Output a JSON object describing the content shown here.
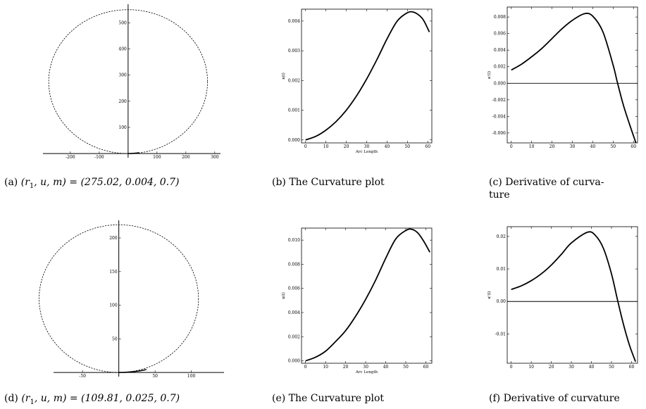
{
  "figure": {
    "captions": {
      "a": {
        "tag": "(a)",
        "lhs": "(r",
        "sub": "1",
        "rest": ", u, m) = (275.02, 0.004, 0.7)"
      },
      "b": {
        "tag": "(b)",
        "text": "The Curvature plot"
      },
      "c": {
        "tag": "(c)",
        "text": "Derivative of curva-",
        "text2": "ture"
      },
      "d": {
        "tag": "(d)",
        "lhs": "(r",
        "sub": "1",
        "rest": ", u, m) = (109.81, 0.025, 0.7)"
      },
      "e": {
        "tag": "(e)",
        "text": "The Curvature plot"
      },
      "f": {
        "tag": "(f)",
        "text": "Derivative of curvature"
      }
    }
  },
  "chart_data": [
    {
      "id": "a",
      "type": "line",
      "title": "",
      "xlabel": "",
      "ylabel": "",
      "xlim": [
        -290,
        320
      ],
      "ylim": [
        -5,
        560
      ],
      "xticks": [
        -200,
        -100,
        100,
        200,
        300
      ],
      "yticks": [
        100,
        200,
        300,
        400,
        500
      ],
      "series": [
        {
          "kind": "circle-dashed",
          "cx": 0,
          "cy": 275.02,
          "r": 275.02
        },
        {
          "kind": "spiral",
          "points": [
            [
              0,
              0
            ],
            [
              10,
              0.2
            ],
            [
              20,
              0.8
            ],
            [
              30,
              1.8
            ],
            [
              38,
              3.3
            ]
          ]
        }
      ]
    },
    {
      "id": "b",
      "type": "line",
      "title": "",
      "xlabel": "Arc Length",
      "ylabel": "κ(l)",
      "xlim": [
        -2,
        62
      ],
      "ylim": [
        -0.0001,
        0.0044
      ],
      "xticks": [
        0,
        10,
        20,
        30,
        40,
        50,
        60
      ],
      "yticks": [
        0.0,
        0.001,
        0.002,
        0.003,
        0.004
      ],
      "ytick_labels": [
        "0.000",
        "0.001",
        "0.002",
        "0.003",
        "0.004"
      ],
      "series": [
        {
          "x": [
            0,
            5,
            10,
            15,
            20,
            25,
            30,
            35,
            40,
            45,
            50,
            53,
            56,
            58,
            60.8
          ],
          "y": [
            0,
            0.00012,
            0.00033,
            0.00062,
            0.001,
            0.00148,
            0.00205,
            0.0027,
            0.0034,
            0.004,
            0.00428,
            0.0043,
            0.00418,
            0.00402,
            0.00363
          ]
        }
      ]
    },
    {
      "id": "c",
      "type": "line",
      "title": "",
      "xlabel": "",
      "ylabel": "κ'(l)",
      "xlim": [
        -2,
        62
      ],
      "ylim": [
        -0.0072,
        0.0092
      ],
      "xticks": [
        0,
        10,
        20,
        30,
        40,
        50,
        60
      ],
      "yticks": [
        -0.006,
        -0.004,
        -0.002,
        0.0,
        0.002,
        0.004,
        0.006,
        0.008
      ],
      "ytick_labels": [
        "-0.006",
        "-0.004",
        "-0.002",
        "0.000",
        "0.002",
        "0.004",
        "0.006",
        "0.008"
      ],
      "zero_line": true,
      "series": [
        {
          "x": [
            0,
            5,
            10,
            15,
            20,
            25,
            30,
            36,
            40,
            45,
            50,
            52,
            55,
            58,
            61.2
          ],
          "y": [
            0.0016,
            0.0023,
            0.0032,
            0.0042,
            0.0054,
            0.0066,
            0.0076,
            0.0084,
            0.0081,
            0.0062,
            0.0022,
            0.0002,
            -0.0026,
            -0.0049,
            -0.0072
          ]
        }
      ]
    },
    {
      "id": "d",
      "type": "line",
      "title": "",
      "xlabel": "",
      "ylabel": "",
      "xlim": [
        -88,
        145
      ],
      "ylim": [
        -2,
        222
      ],
      "xticks": [
        -50,
        50,
        100
      ],
      "yticks": [
        50,
        100,
        150,
        200
      ],
      "series": [
        {
          "kind": "circle-dashed",
          "cx": 0,
          "cy": 109.81,
          "r": 109.81
        },
        {
          "kind": "spiral",
          "points": [
            [
              0,
              0
            ],
            [
              10,
              0.3
            ],
            [
              20,
              1.2
            ],
            [
              30,
              2.6
            ],
            [
              38,
              4.4
            ]
          ]
        }
      ]
    },
    {
      "id": "e",
      "type": "line",
      "title": "",
      "xlabel": "Arc Length",
      "ylabel": "κ(l)",
      "xlim": [
        -2,
        63
      ],
      "ylim": [
        -0.0002,
        0.011
      ],
      "xticks": [
        0,
        10,
        20,
        30,
        40,
        50,
        60
      ],
      "yticks": [
        0.0,
        0.002,
        0.004,
        0.006,
        0.008,
        0.01
      ],
      "ytick_labels": [
        "0.000",
        "0.002",
        "0.004",
        "0.006",
        "0.008",
        "0.010"
      ],
      "series": [
        {
          "x": [
            0,
            5,
            10,
            15,
            20,
            25,
            30,
            35,
            40,
            45,
            50,
            53,
            56,
            59,
            62
          ],
          "y": [
            0,
            0.0003,
            0.0008,
            0.0016,
            0.0025,
            0.0037,
            0.0051,
            0.0067,
            0.0085,
            0.0101,
            0.0108,
            0.0109,
            0.0106,
            0.0099,
            0.009
          ]
        }
      ]
    },
    {
      "id": "f",
      "type": "line",
      "title": "",
      "xlabel": "",
      "ylabel": "κ'(l)",
      "xlim": [
        -2,
        63
      ],
      "ylim": [
        -0.019,
        0.023
      ],
      "xticks": [
        0,
        10,
        20,
        30,
        40,
        50,
        60
      ],
      "yticks": [
        -0.01,
        0.0,
        0.01,
        0.02
      ],
      "ytick_labels": [
        "-0.01",
        "0.00",
        "0.01",
        "0.02"
      ],
      "zero_line": true,
      "series": [
        {
          "x": [
            0,
            5,
            10,
            15,
            20,
            25,
            30,
            38,
            42,
            46,
            50,
            53,
            56,
            59,
            62
          ],
          "y": [
            0.0037,
            0.0048,
            0.0064,
            0.0085,
            0.0112,
            0.0145,
            0.018,
            0.0213,
            0.0203,
            0.0163,
            0.0085,
            0.0005,
            -0.0071,
            -0.0135,
            -0.0185
          ]
        }
      ]
    }
  ]
}
